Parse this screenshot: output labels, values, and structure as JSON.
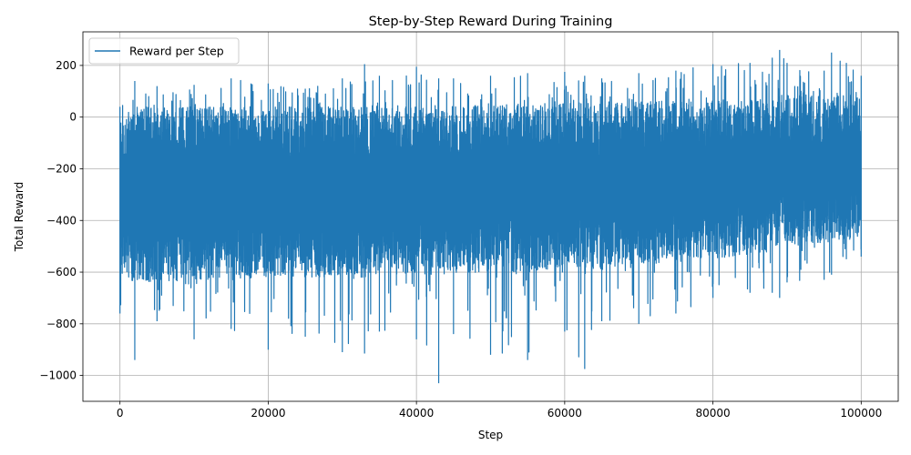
{
  "chart_data": {
    "type": "line",
    "title": "Step-by-Step Reward During Training",
    "xlabel": "Step",
    "ylabel": "Total Reward",
    "xlim": [
      -5000,
      105000
    ],
    "ylim": [
      -1100,
      330
    ],
    "xticks": [
      0,
      20000,
      40000,
      60000,
      80000,
      100000
    ],
    "xtick_labels": [
      "0",
      "20000",
      "40000",
      "60000",
      "80000",
      "100000"
    ],
    "yticks": [
      -1000,
      -800,
      -600,
      -400,
      -200,
      0,
      200
    ],
    "ytick_labels": [
      "−1000",
      "−800",
      "−600",
      "−400",
      "−200",
      "0",
      "200"
    ],
    "grid": true,
    "legend_position": "upper-left",
    "series": [
      {
        "name": "Reward per Step",
        "color": "#1f77b4",
        "x_range": [
          0,
          100000
        ],
        "envelope": {
          "x": [
            0,
            2000,
            5000,
            10000,
            15000,
            20000,
            25000,
            30000,
            33000,
            35000,
            40000,
            43000,
            45000,
            50000,
            55000,
            60000,
            62700,
            65000,
            70000,
            75000,
            80000,
            85000,
            88000,
            89000,
            90000,
            95000,
            96000,
            98000,
            100000
          ],
          "upper": [
            40,
            140,
            120,
            125,
            150,
            130,
            110,
            150,
            205,
            160,
            195,
            150,
            150,
            160,
            170,
            175,
            160,
            150,
            170,
            180,
            205,
            210,
            230,
            260,
            210,
            180,
            250,
            210,
            160
          ],
          "lower": [
            -760,
            -940,
            -790,
            -860,
            -820,
            -900,
            -850,
            -910,
            -915,
            -830,
            -860,
            -1030,
            -840,
            -920,
            -940,
            -830,
            -975,
            -790,
            -800,
            -760,
            -700,
            -680,
            -680,
            -700,
            -640,
            -630,
            -610,
            -550,
            -540
          ],
          "typical_high": [
            -10,
            40,
            40,
            40,
            40,
            40,
            40,
            40,
            45,
            45,
            45,
            45,
            45,
            50,
            50,
            55,
            55,
            55,
            60,
            65,
            70,
            75,
            80,
            85,
            85,
            85,
            90,
            90,
            90
          ],
          "typical_low": [
            -600,
            -640,
            -640,
            -630,
            -630,
            -620,
            -620,
            -620,
            -620,
            -610,
            -610,
            -610,
            -610,
            -600,
            -600,
            -590,
            -590,
            -590,
            -570,
            -560,
            -550,
            -530,
            -520,
            -510,
            -500,
            -490,
            -480,
            -470,
            -460
          ]
        }
      }
    ]
  }
}
